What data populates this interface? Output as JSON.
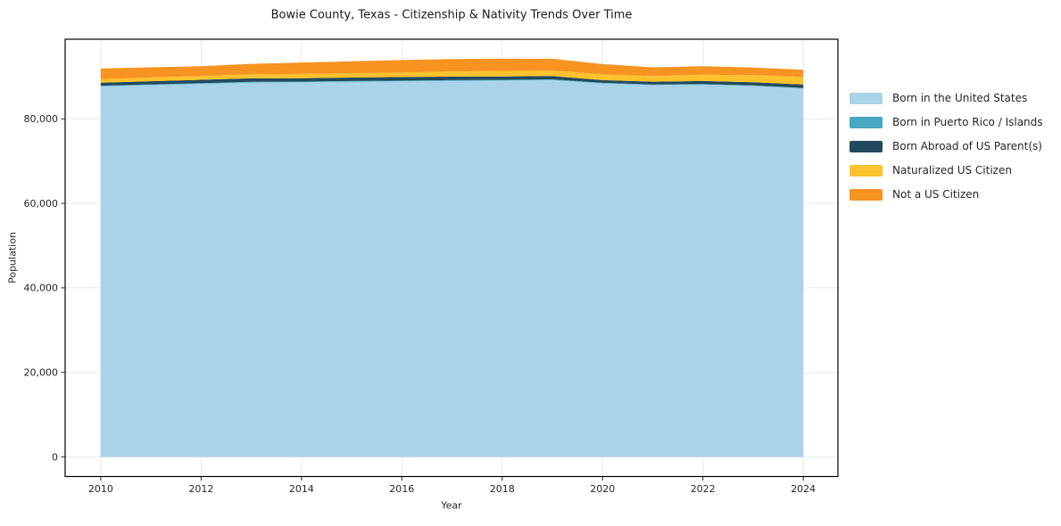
{
  "chart_data": {
    "type": "area",
    "stacked": true,
    "title": "Bowie County, Texas - Citizenship & Nativity Trends Over Time",
    "xlabel": "Year",
    "ylabel": "Population",
    "x": [
      2010,
      2011,
      2012,
      2013,
      2014,
      2015,
      2016,
      2017,
      2018,
      2019,
      2020,
      2021,
      2022,
      2023,
      2024
    ],
    "series": [
      {
        "name": "Born in the United States",
        "color": "#a8d3e8",
        "values": [
          87700,
          88000,
          88300,
          88600,
          88700,
          88800,
          88900,
          89000,
          89100,
          89200,
          88400,
          88000,
          88100,
          87800,
          87200
        ]
      },
      {
        "name": "Born in Puerto Rico / Islands",
        "color": "#46a8c2",
        "values": [
          150,
          160,
          140,
          150,
          130,
          140,
          150,
          160,
          150,
          140,
          130,
          140,
          150,
          140,
          130
        ]
      },
      {
        "name": "Born Abroad of US Parent(s)",
        "color": "#224a5c",
        "values": [
          700,
          750,
          800,
          820,
          800,
          820,
          850,
          850,
          800,
          780,
          620,
          660,
          700,
          720,
          800
        ]
      },
      {
        "name": "Naturalized US Citizen",
        "color": "#fcc22d",
        "values": [
          850,
          880,
          900,
          950,
          1000,
          1050,
          1100,
          1200,
          1300,
          1300,
          1350,
          1300,
          1500,
          1650,
          1800
        ]
      },
      {
        "name": "Not a US Citizen",
        "color": "#f79321",
        "values": [
          2500,
          2400,
          2300,
          2500,
          2700,
          2800,
          2900,
          2950,
          2900,
          2800,
          2450,
          2100,
          2000,
          1850,
          1700
        ]
      }
    ],
    "xticks": [
      2010,
      2012,
      2014,
      2016,
      2018,
      2020,
      2022,
      2024
    ],
    "yticks": [
      0,
      20000,
      40000,
      60000,
      80000
    ],
    "xlim": [
      2009.29,
      2024.69
    ],
    "ylim": [
      -4630,
      98840
    ],
    "grid": true,
    "grid_color": "#e8e8e8",
    "frame_color": "#000000",
    "tick_color": "#262626",
    "legend_position": "right-outside"
  }
}
